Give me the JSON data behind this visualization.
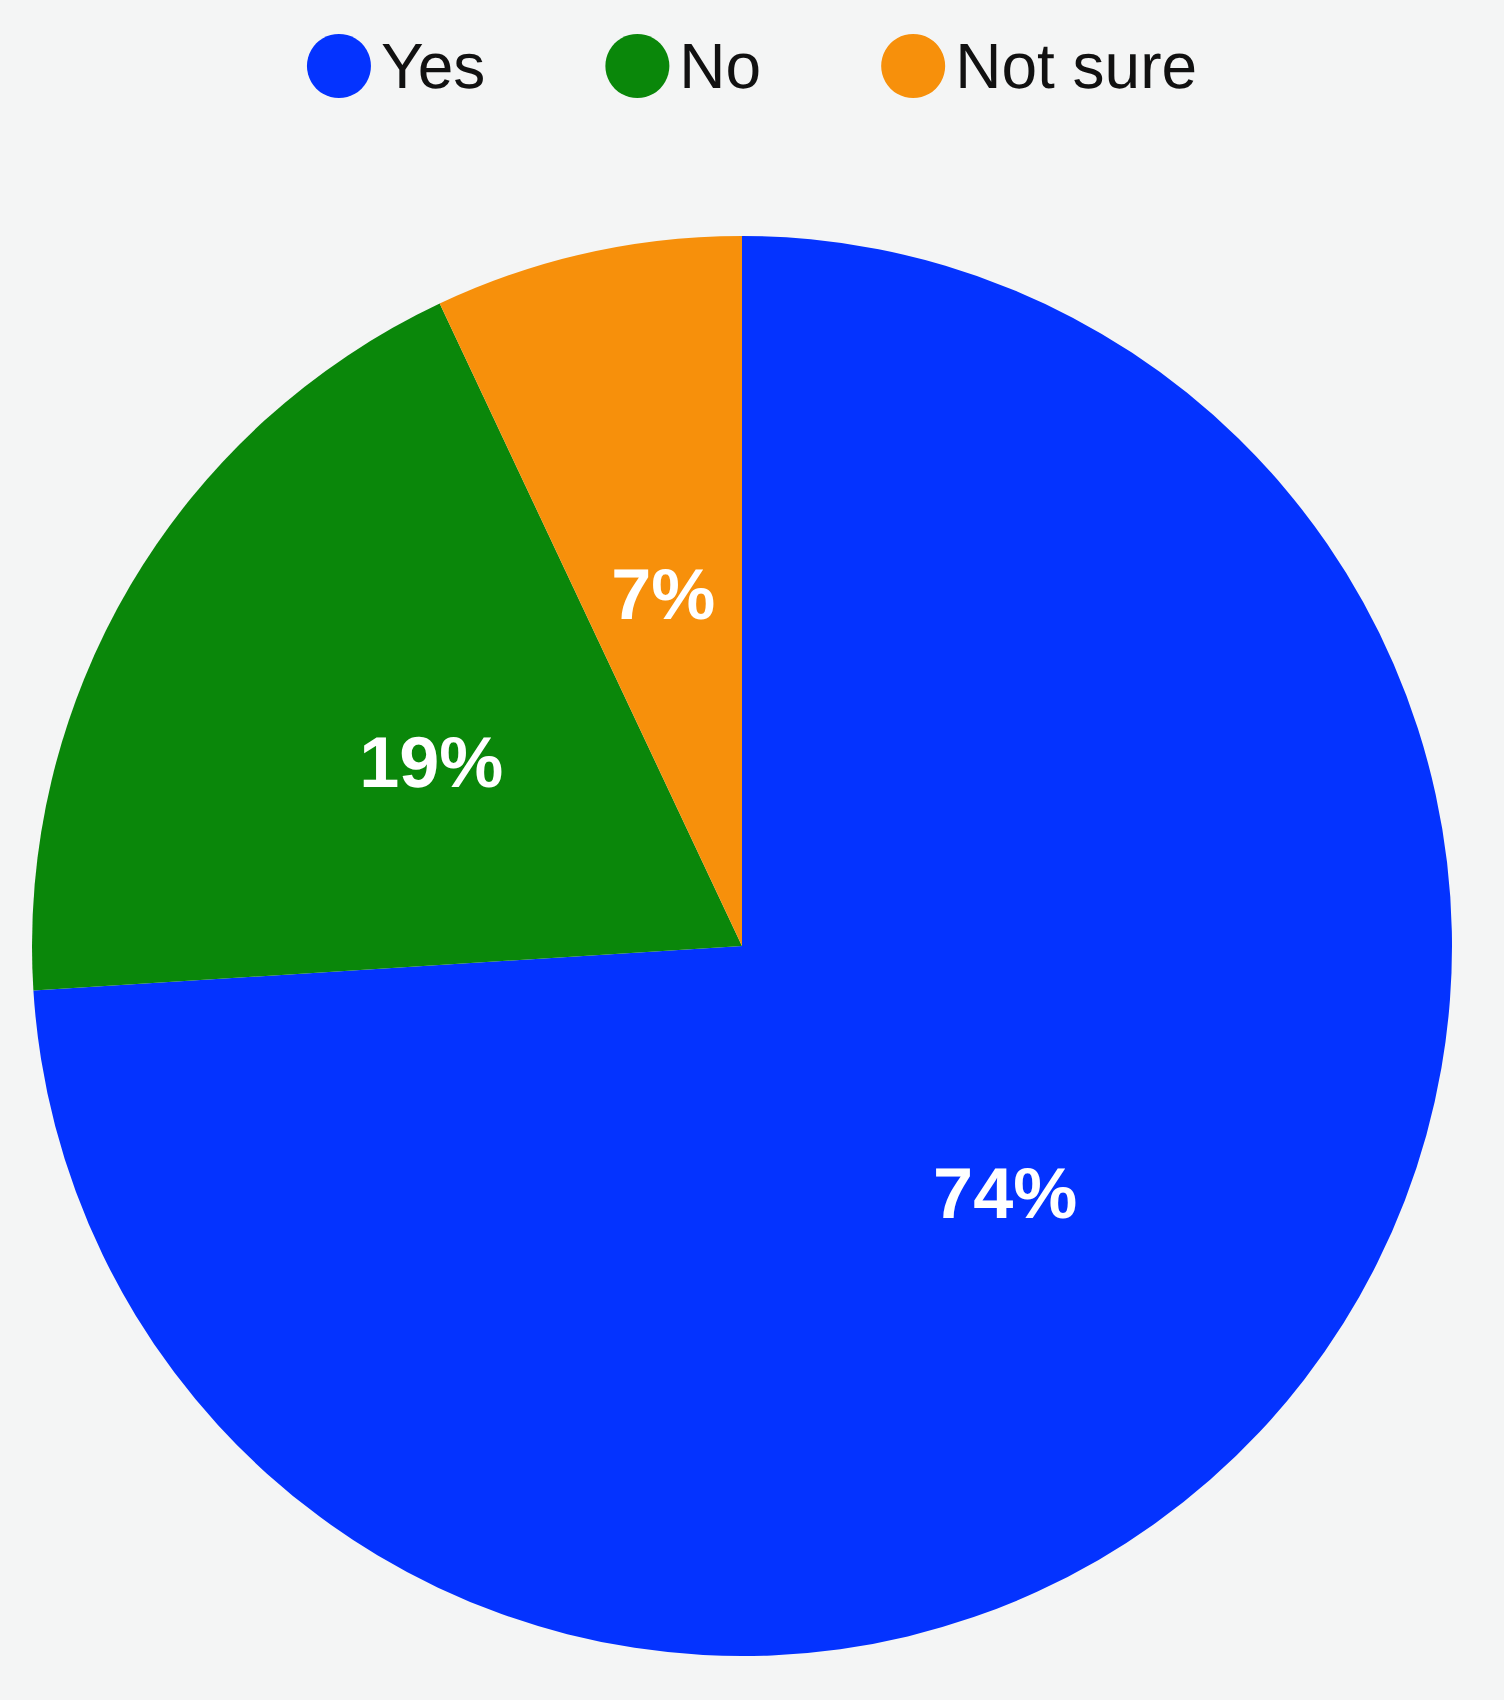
{
  "chart_data": {
    "type": "pie",
    "categories": [
      "Yes",
      "No",
      "Not sure"
    ],
    "values": [
      74,
      19,
      7
    ],
    "colors": [
      "#0433ff",
      "#0a870a",
      "#f7900b"
    ],
    "value_labels": [
      "74%",
      "19%",
      "7%"
    ],
    "legend": "top"
  }
}
